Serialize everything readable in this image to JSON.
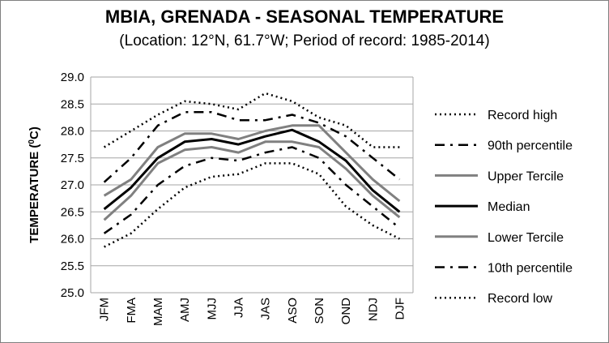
{
  "chart_data": {
    "type": "line",
    "title": "MBIA, GRENADA - SEASONAL TEMPERATURE",
    "subtitle": "(Location: 12°N, 61.7°W; Period of record: 1985-2014)",
    "ylabel": "TEMPERATURE (",
    "ylabel_sup": "0",
    "ylabel_end": "C)",
    "xlabel": "",
    "ylim": [
      25.0,
      29.0
    ],
    "ytick_step": 0.5,
    "grid": true,
    "legend_position": "right",
    "categories": [
      "JFM",
      "FMA",
      "MAM",
      "AMJ",
      "MJJ",
      "JJA",
      "JAS",
      "ASO",
      "SON",
      "OND",
      "NDJ",
      "DJF"
    ],
    "series": [
      {
        "name": "Record high",
        "color": "#000000",
        "style": "dotted",
        "values": [
          27.7,
          28.0,
          28.3,
          28.55,
          28.5,
          28.4,
          28.7,
          28.55,
          28.25,
          28.1,
          27.7,
          27.7
        ]
      },
      {
        "name": "90th percentile",
        "color": "#000000",
        "style": "dashdot",
        "values": [
          27.05,
          27.5,
          28.1,
          28.35,
          28.35,
          28.2,
          28.2,
          28.3,
          28.15,
          27.9,
          27.5,
          27.1
        ]
      },
      {
        "name": "Upper Tercile",
        "color": "#808080",
        "style": "solid",
        "values": [
          26.8,
          27.1,
          27.7,
          27.95,
          27.95,
          27.85,
          28.0,
          28.1,
          28.1,
          27.6,
          27.1,
          26.7
        ]
      },
      {
        "name": "Median",
        "color": "#000000",
        "style": "solid",
        "values": [
          26.55,
          26.95,
          27.5,
          27.8,
          27.85,
          27.75,
          27.9,
          28.02,
          27.8,
          27.45,
          26.9,
          26.5
        ]
      },
      {
        "name": "Lower Tercile",
        "color": "#808080",
        "style": "solid",
        "values": [
          26.35,
          26.8,
          27.4,
          27.65,
          27.7,
          27.6,
          27.8,
          27.8,
          27.7,
          27.3,
          26.8,
          26.4
        ]
      },
      {
        "name": "10th percentile",
        "color": "#000000",
        "style": "dashdot",
        "values": [
          26.1,
          26.45,
          27.0,
          27.35,
          27.5,
          27.45,
          27.6,
          27.7,
          27.5,
          27.0,
          26.6,
          26.2
        ]
      },
      {
        "name": "Record low",
        "color": "#000000",
        "style": "dotted",
        "values": [
          25.85,
          26.1,
          26.55,
          26.95,
          27.15,
          27.2,
          27.4,
          27.4,
          27.2,
          26.6,
          26.25,
          26.0
        ]
      }
    ]
  }
}
